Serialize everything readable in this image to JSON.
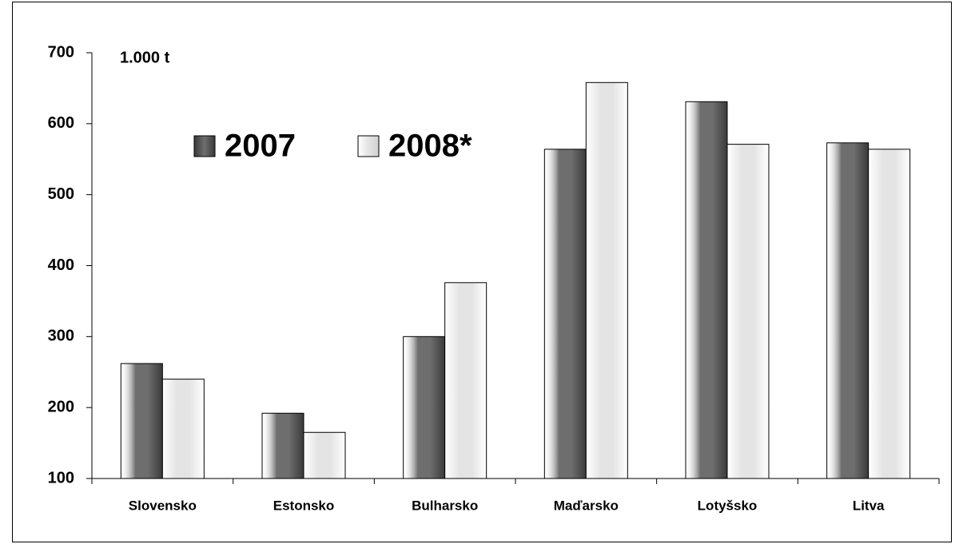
{
  "chart_data": {
    "type": "bar",
    "unit_label": "1.000 t",
    "categories": [
      "Slovensko",
      "Estonsko",
      "Bulharsko",
      "Maďarsko",
      "Lotyšsko",
      "Litva"
    ],
    "series": [
      {
        "name": "2007",
        "color": "#6e6e6e",
        "values": [
          262,
          192,
          300,
          564,
          631,
          573
        ]
      },
      {
        "name": "2008*",
        "color": "#e4e4e4",
        "values": [
          240,
          165,
          376,
          658,
          571,
          564
        ]
      }
    ],
    "ylim": [
      100,
      700
    ],
    "yticks": [
      100,
      200,
      300,
      400,
      500,
      600,
      700
    ],
    "grid": false
  }
}
